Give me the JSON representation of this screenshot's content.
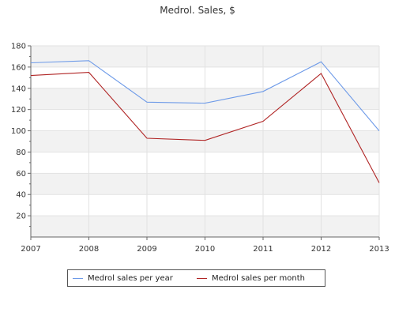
{
  "chart_data": {
    "type": "line",
    "title": "Medrol. Sales, $",
    "x": [
      "2007",
      "2008",
      "2009",
      "2010",
      "2011",
      "2012",
      "2013"
    ],
    "series": [
      {
        "name": "Medrol sales per year",
        "color": "#6d9ae8",
        "values": [
          164,
          166,
          127,
          126,
          137,
          165,
          100
        ]
      },
      {
        "name": "Medrol sales per month",
        "color": "#b02424",
        "values": [
          152,
          155,
          93,
          91,
          109,
          154,
          51
        ]
      }
    ],
    "ylim": [
      0,
      180
    ],
    "yticks": [
      20,
      40,
      60,
      80,
      100,
      120,
      140,
      160,
      180
    ],
    "grid": true,
    "legend_position": "bottom"
  }
}
